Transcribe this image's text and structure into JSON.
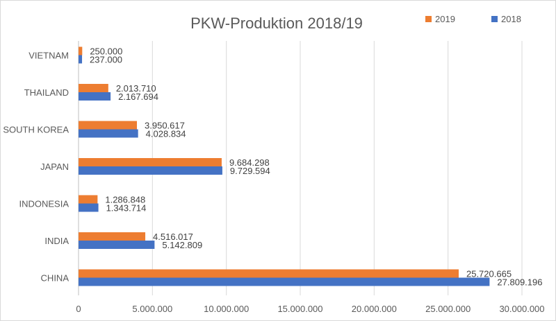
{
  "chart_data": {
    "type": "bar",
    "orientation": "horizontal",
    "title": "PKW-Produktion 2018/19",
    "categories": [
      "VIETNAM",
      "THAILAND",
      "SOUTH KOREA",
      "JAPAN",
      "INDONESIA",
      "INDIA",
      "CHINA"
    ],
    "series": [
      {
        "name": "2019",
        "color": "#ED7D31",
        "values": [
          250000,
          2013710,
          3950617,
          9684298,
          1286848,
          4516017,
          25720665
        ],
        "labels": [
          "250.000",
          "2.013.710",
          "3.950.617",
          "9.684.298",
          "1.286.848",
          "4.516.017",
          "25.720.665"
        ]
      },
      {
        "name": "2018",
        "color": "#4472C4",
        "values": [
          237000,
          2167694,
          4028834,
          9729594,
          1343714,
          5142809,
          27809196
        ],
        "labels": [
          "237.000",
          "2.167.694",
          "4.028.834",
          "9.729.594",
          "1.343.714",
          "5.142.809",
          "27.809.196"
        ]
      }
    ],
    "xlim": [
      0,
      30000000
    ],
    "xticks": [
      0,
      5000000,
      10000000,
      15000000,
      20000000,
      25000000,
      30000000
    ],
    "xtick_labels": [
      "0",
      "5.000.000",
      "10.000.000",
      "15.000.000",
      "20.000.000",
      "25.000.000",
      "30.000.000"
    ],
    "legend": {
      "position": "top-right",
      "order": [
        "2019",
        "2018"
      ]
    },
    "grid": {
      "vertical": true,
      "horizontal": false,
      "color": "#d9d9d9"
    }
  }
}
